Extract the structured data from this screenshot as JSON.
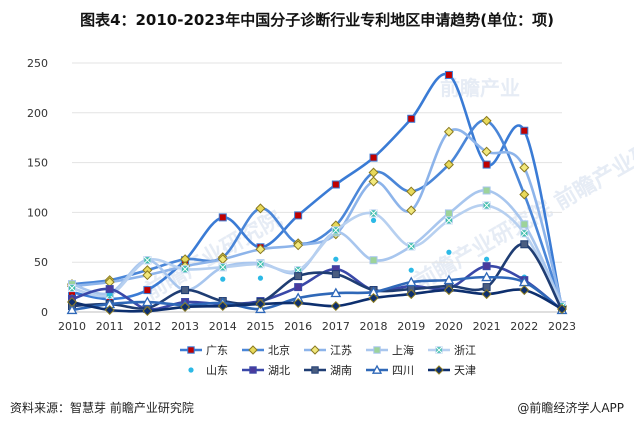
{
  "title": "图表4：2010-2023年中国分子诊断行业专利地区申请趋势(单位：项)",
  "footer": {
    "source": "资料来源：智慧芽 前瞻产业研究院",
    "brand": "@前瞻经济学人APP"
  },
  "watermark": {
    "text": "前瞻产业研究院",
    "text_small": "前瞻产业"
  },
  "chart_data": {
    "type": "line",
    "title": "",
    "xlabel": "",
    "ylabel": "",
    "x": [
      "2010",
      "2011",
      "2012",
      "2013",
      "2014",
      "2015",
      "2016",
      "2017",
      "2018",
      "2019",
      "2020",
      "2021",
      "2022",
      "2023"
    ],
    "ylim": [
      0,
      250
    ],
    "yticks": [
      0,
      50,
      100,
      150,
      200,
      250
    ],
    "grid": true,
    "legend_position": "bottom",
    "series": [
      {
        "name": "广东",
        "color": "#3a7bd5",
        "marker": "square",
        "markerColor": "#c00000",
        "values": [
          20,
          13,
          22,
          52,
          95,
          65,
          97,
          128,
          155,
          194,
          238,
          148,
          182,
          3
        ]
      },
      {
        "name": "北京",
        "color": "#4a86d8",
        "marker": "diamond",
        "markerColor": "#e8d95a",
        "values": [
          28,
          32,
          42,
          53,
          55,
          104,
          69,
          87,
          140,
          121,
          148,
          192,
          118,
          5
        ]
      },
      {
        "name": "江苏",
        "color": "#8db4ea",
        "marker": "diamond",
        "markerColor": "#f1e87c",
        "values": [
          26,
          30,
          37,
          46,
          53,
          63,
          67,
          78,
          131,
          102,
          181,
          161,
          145,
          6
        ]
      },
      {
        "name": "上海",
        "color": "#a8c6ee",
        "marker": "square",
        "markerColor": "#9dd39a",
        "values": [
          28,
          19,
          52,
          22,
          45,
          49,
          40,
          80,
          52,
          66,
          99,
          122,
          88,
          7
        ]
      },
      {
        "name": "浙江",
        "color": "#b7d0f0",
        "marker": "x-square",
        "markerColor": "#3dbfaa",
        "values": [
          24,
          17,
          52,
          43,
          45,
          48,
          42,
          82,
          99,
          66,
          92,
          107,
          79,
          6
        ]
      },
      {
        "name": "山东",
        "color": "#2cb9e6",
        "marker": "dot",
        "markerColor": "#2cb9e6",
        "nolinе": true,
        "values": [
          15,
          18,
          10,
          22,
          33,
          34,
          38,
          53,
          92,
          42,
          60,
          53,
          35,
          3
        ]
      },
      {
        "name": "湖北",
        "color": "#3a48a8",
        "marker": "square",
        "markerColor": "#4a3a9c",
        "values": [
          13,
          23,
          3,
          10,
          8,
          11,
          25,
          43,
          22,
          26,
          24,
          46,
          32,
          2
        ]
      },
      {
        "name": "湖南",
        "color": "#1f3d73",
        "marker": "square",
        "markerColor": "#4a5d80",
        "values": [
          6,
          8,
          4,
          22,
          11,
          10,
          36,
          38,
          22,
          23,
          26,
          25,
          68,
          2
        ]
      },
      {
        "name": "四川",
        "color": "#2f68b8",
        "marker": "triangle",
        "markerColor": "#ffffff",
        "values": [
          2,
          8,
          10,
          7,
          9,
          3,
          14,
          19,
          20,
          30,
          32,
          35,
          30,
          2
        ]
      },
      {
        "name": "天津",
        "color": "#0d2f6e",
        "marker": "diamond",
        "markerColor": "#0d2f6e",
        "values": [
          10,
          2,
          1,
          5,
          6,
          8,
          9,
          6,
          14,
          18,
          22,
          18,
          22,
          3
        ]
      }
    ]
  }
}
